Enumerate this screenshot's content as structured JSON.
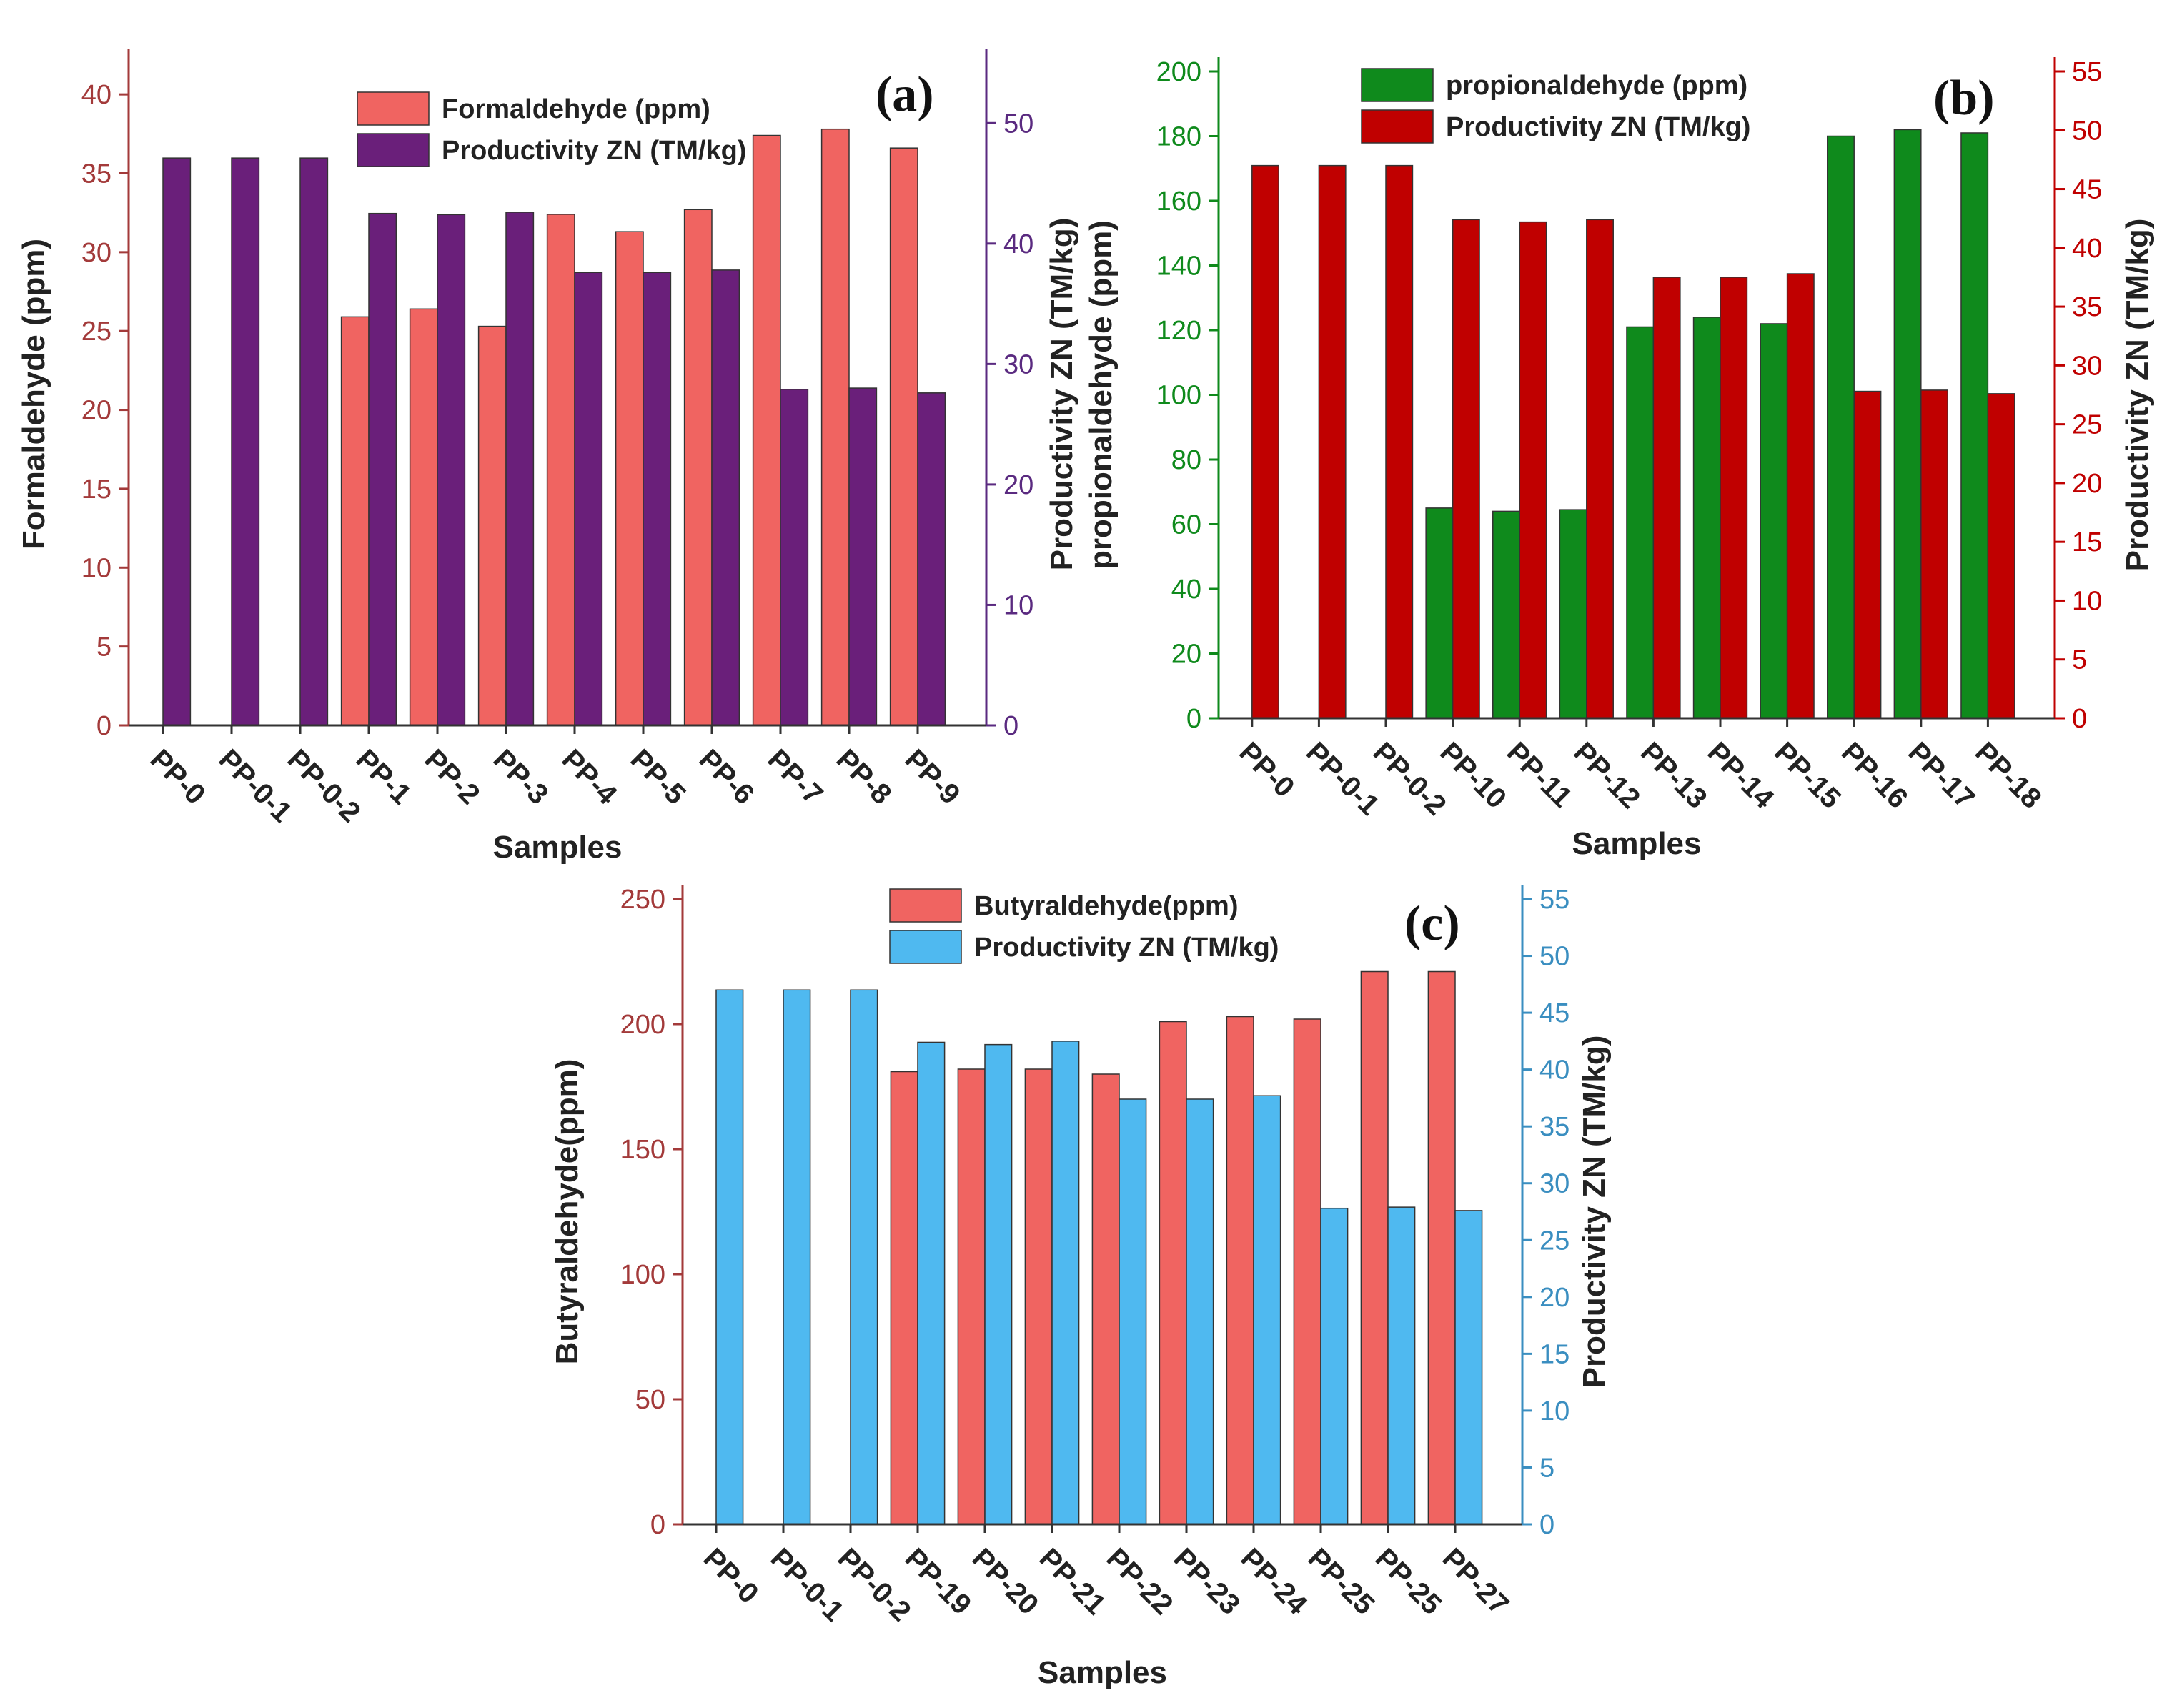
{
  "chart_data": [
    {
      "type": "bar",
      "panel_label": "(a)",
      "categories": [
        "PP-0",
        "PP-0-1",
        "PP-0-2",
        "PP-1",
        "PP-2",
        "PP-3",
        "PP-4",
        "PP-5",
        "PP-6",
        "PP-7",
        "PP-8",
        "PP-9"
      ],
      "series": [
        {
          "name": "Formaldehyde (ppm)",
          "axis": "left",
          "color": "#f06461",
          "values": [
            null,
            null,
            null,
            25.9,
            26.4,
            25.3,
            32.4,
            31.3,
            32.7,
            37.4,
            37.8,
            36.6
          ]
        },
        {
          "name": "Productivity ZN (TM/kg)",
          "axis": "right",
          "color": "#6a1f7a",
          "values": [
            47.1,
            47.1,
            47.1,
            42.5,
            42.4,
            42.6,
            37.6,
            37.6,
            37.8,
            27.9,
            28.0,
            27.6
          ]
        }
      ],
      "xlabel": "Samples",
      "ylabel_left": "Formaldehyde (ppm)",
      "ylabel_right": "Productivity ZN (TM/kg)",
      "ylim_left": [
        0,
        42
      ],
      "ylim_right": [
        0,
        55
      ],
      "yticks_left": [
        "0",
        "5",
        "10",
        "15",
        "20",
        "25",
        "30",
        "35",
        "40"
      ],
      "yticks_right": [
        "0",
        "10",
        "20",
        "30",
        "40",
        "50"
      ],
      "left_axis_color": "#a33a3a",
      "right_axis_color": "#5a2a80",
      "legend": "top-center"
    },
    {
      "type": "bar",
      "panel_label": "(b)",
      "categories": [
        "PP-0",
        "PP-0-1",
        "PP-0-2",
        "PP-10",
        "PP-11",
        "PP-12",
        "PP-13",
        "PP-14",
        "PP-15",
        "PP-16",
        "PP-17",
        "PP-18"
      ],
      "series": [
        {
          "name": "propionaldehyde (ppm)",
          "axis": "left",
          "color": "#0f8a1c",
          "values": [
            null,
            null,
            null,
            65,
            64,
            64.5,
            121,
            124,
            122,
            180,
            182,
            181
          ]
        },
        {
          "name": "Productivity ZN (TM/kg)",
          "axis": "right",
          "color": "#c00000",
          "values": [
            47.0,
            47.0,
            47.0,
            42.4,
            42.2,
            42.4,
            37.5,
            37.5,
            37.8,
            27.8,
            27.9,
            27.6
          ]
        }
      ],
      "xlabel": "Samples",
      "ylabel_left": "propionaldehyde (ppm)",
      "ylabel_right": "Productivity ZN (TM/kg)",
      "ylim_left": [
        0,
        200
      ],
      "ylim_right": [
        0,
        55
      ],
      "yticks_left": [
        "0",
        "20",
        "40",
        "60",
        "80",
        "100",
        "120",
        "140",
        "160",
        "180",
        "200"
      ],
      "yticks_right": [
        "0",
        "5",
        "10",
        "15",
        "20",
        "25",
        "30",
        "35",
        "40",
        "45",
        "50",
        "55"
      ],
      "left_axis_color": "#0f8a1c",
      "right_axis_color": "#c00000",
      "legend": "top-center"
    },
    {
      "type": "bar",
      "panel_label": "(c)",
      "categories": [
        "PP-0",
        "PP-0-1",
        "PP-0-2",
        "PP-19",
        "PP-20",
        "PP-21",
        "PP-22",
        "PP-23",
        "PP-24",
        "PP-25",
        "PP-25",
        "PP-27"
      ],
      "series": [
        {
          "name": "Butyraldehyde(ppm)",
          "axis": "left",
          "color": "#f06461",
          "values": [
            null,
            null,
            null,
            181,
            182,
            182,
            180,
            201,
            203,
            202,
            221,
            221
          ]
        },
        {
          "name": "Productivity  ZN (TM/kg)",
          "axis": "right",
          "color": "#4fb9f0",
          "values": [
            47.0,
            47.0,
            47.0,
            42.4,
            42.2,
            42.5,
            37.4,
            37.4,
            37.7,
            27.8,
            27.9,
            27.6
          ]
        }
      ],
      "xlabel": "Samples",
      "ylabel_left": "Butyraldehyde(ppm)",
      "ylabel_right": "Productivity  ZN (TM/kg)",
      "ylim_left": [
        0,
        250
      ],
      "ylim_right": [
        0,
        55
      ],
      "yticks_left": [
        "0",
        "50",
        "100",
        "150",
        "200",
        "250"
      ],
      "yticks_right": [
        "0",
        "5",
        "10",
        "15",
        "20",
        "25",
        "30",
        "35",
        "40",
        "45",
        "50",
        "55"
      ],
      "left_axis_color": "#a33a3a",
      "right_axis_color": "#3a8ec0",
      "legend": "top-center"
    }
  ]
}
